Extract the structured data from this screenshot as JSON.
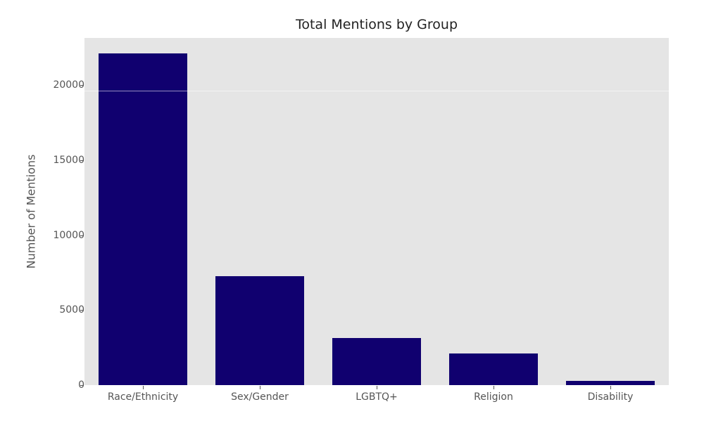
{
  "chart_data": {
    "type": "bar",
    "title": "Total Mentions by Group",
    "xlabel": "",
    "ylabel": "Number of Mentions",
    "categories": [
      "Race/Ethnicity",
      "Sex/Gender",
      "LGBTQ+",
      "Religion",
      "Disability"
    ],
    "values": [
      22100,
      7250,
      3130,
      2100,
      280
    ],
    "ylim": [
      0,
      23150
    ],
    "yticks": [
      0,
      5000,
      10000,
      15000,
      20000
    ],
    "ytick_labels": [
      "0",
      "5000",
      "10000",
      "15000",
      "20000"
    ],
    "grid": false,
    "legend": null,
    "bar_color": "#10006f",
    "background_color": "#e5e5e5"
  }
}
